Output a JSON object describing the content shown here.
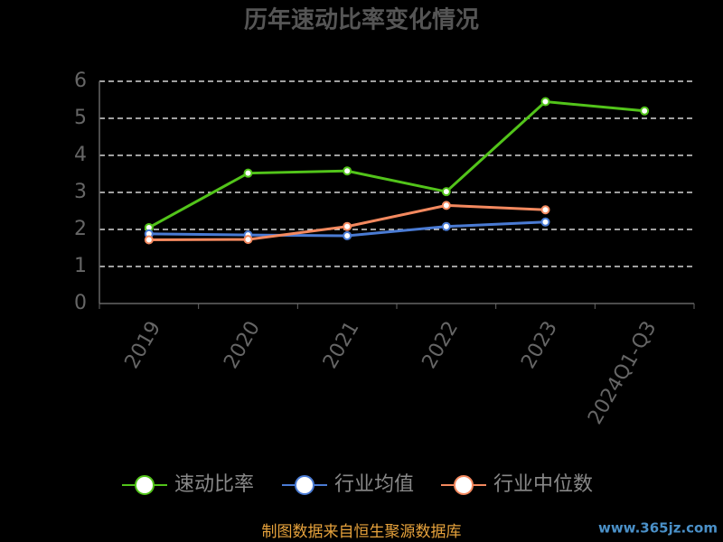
{
  "chart_data": {
    "type": "line",
    "title": "历年速动比率变化情况",
    "categories": [
      "2019",
      "2020",
      "2021",
      "2022",
      "2023",
      "2024Q1-Q3"
    ],
    "series": [
      {
        "name": "速动比率",
        "color": "#52c41a",
        "values": [
          2.05,
          3.52,
          3.58,
          3.02,
          5.45,
          5.2
        ]
      },
      {
        "name": "行业均值",
        "color": "#4a7bd4",
        "values": [
          1.88,
          1.85,
          1.83,
          2.08,
          2.2,
          null
        ]
      },
      {
        "name": "行业中位数",
        "color": "#f4895f",
        "values": [
          1.72,
          1.73,
          2.08,
          2.65,
          2.53,
          null
        ]
      }
    ],
    "ylim": [
      0,
      6
    ],
    "yticks": [
      0,
      1,
      2,
      3,
      4,
      5,
      6
    ],
    "grid": true,
    "legend": "bottom",
    "source": "制图数据来自恒生聚源数据库",
    "watermark": "www.365jz.com"
  }
}
